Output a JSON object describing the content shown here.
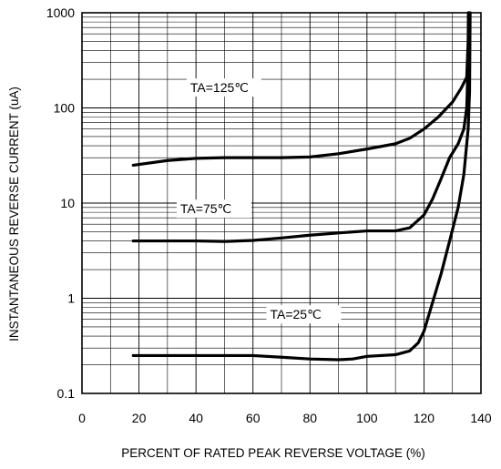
{
  "chart_data": {
    "type": "line",
    "xlabel": "PERCENT OF RATED PEAK REVERSE VOLTAGE (%)",
    "ylabel": "INSTANTANEOUS REVERSE CURRENT (uA)",
    "xlim": [
      0,
      140
    ],
    "ylim": [
      0.1,
      1000
    ],
    "yscale": "log",
    "grid": true,
    "x_ticks": [
      0,
      20,
      40,
      60,
      80,
      100,
      120,
      140
    ],
    "x_tick_labels": [
      "0",
      "20",
      "40",
      "60",
      "80",
      "100",
      "120",
      "140"
    ],
    "y_ticks": [
      0.1,
      1,
      10,
      100,
      1000
    ],
    "y_tick_labels": [
      "0.1",
      "1",
      "10",
      "100",
      "1000"
    ],
    "series": [
      {
        "name": "TA=125℃",
        "points": [
          [
            18,
            25
          ],
          [
            30,
            28
          ],
          [
            40,
            29.5
          ],
          [
            50,
            30
          ],
          [
            60,
            30
          ],
          [
            70,
            30
          ],
          [
            80,
            30.5
          ],
          [
            90,
            33
          ],
          [
            100,
            37
          ],
          [
            110,
            42
          ],
          [
            115,
            48
          ],
          [
            120,
            60
          ],
          [
            125,
            80
          ],
          [
            130,
            115
          ],
          [
            133,
            160
          ],
          [
            135,
            210
          ],
          [
            135.5,
            500
          ],
          [
            135.6,
            1000
          ]
        ]
      },
      {
        "name": "TA=75℃",
        "points": [
          [
            18,
            4
          ],
          [
            30,
            4
          ],
          [
            40,
            4
          ],
          [
            50,
            3.95
          ],
          [
            60,
            4.05
          ],
          [
            70,
            4.3
          ],
          [
            80,
            4.6
          ],
          [
            90,
            4.85
          ],
          [
            100,
            5.1
          ],
          [
            110,
            5.1
          ],
          [
            115,
            5.5
          ],
          [
            120,
            7.5
          ],
          [
            123,
            11
          ],
          [
            126,
            18
          ],
          [
            129,
            30
          ],
          [
            132,
            42
          ],
          [
            134,
            60
          ],
          [
            135,
            100
          ],
          [
            135.5,
            300
          ],
          [
            135.7,
            1000
          ]
        ]
      },
      {
        "name": "TA=25℃",
        "points": [
          [
            18,
            0.25
          ],
          [
            40,
            0.25
          ],
          [
            60,
            0.25
          ],
          [
            70,
            0.24
          ],
          [
            80,
            0.23
          ],
          [
            90,
            0.226
          ],
          [
            95,
            0.23
          ],
          [
            100,
            0.245
          ],
          [
            110,
            0.255
          ],
          [
            115,
            0.28
          ],
          [
            118,
            0.34
          ],
          [
            120,
            0.45
          ],
          [
            123,
            0.9
          ],
          [
            126,
            1.8
          ],
          [
            129,
            4
          ],
          [
            132,
            9
          ],
          [
            134,
            20
          ],
          [
            135.5,
            60
          ],
          [
            136,
            150
          ],
          [
            136.2,
            1000
          ]
        ]
      }
    ]
  }
}
